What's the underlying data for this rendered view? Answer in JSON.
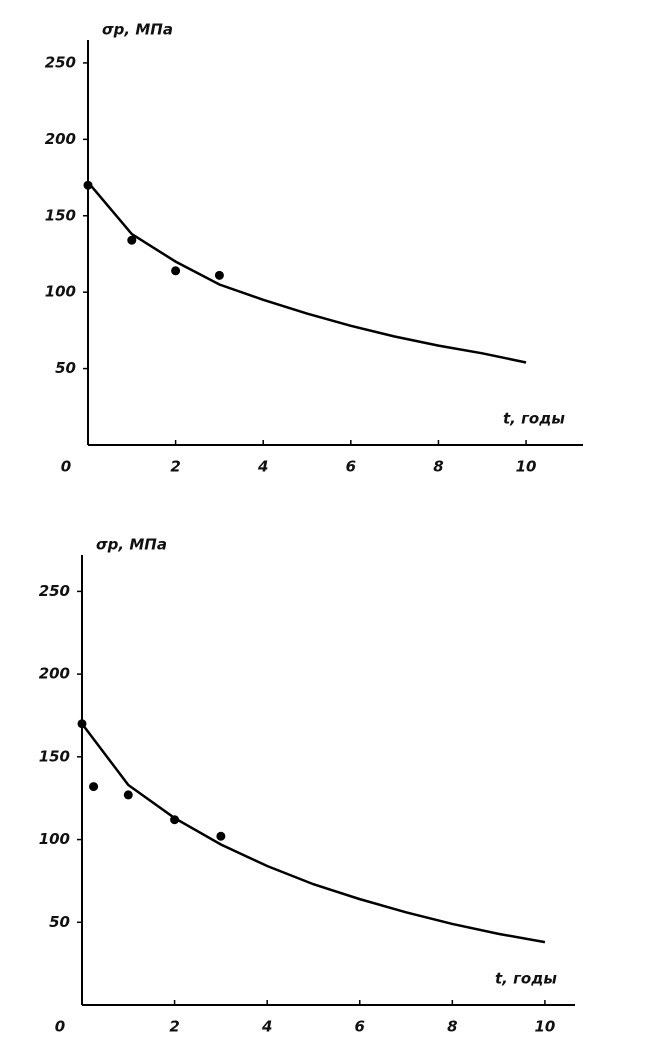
{
  "chart_data": [
    {
      "type": "line",
      "y_label": "σp, МПа",
      "x_label": "t, годы",
      "xlim": [
        0,
        11.3
      ],
      "ylim": [
        0,
        265
      ],
      "xticks": [
        0,
        2,
        4,
        6,
        8,
        10
      ],
      "yticks": [
        50,
        100,
        150,
        200,
        250
      ],
      "series": [
        {
          "type": "line",
          "color": "#000000",
          "x": [
            0,
            1,
            2,
            3,
            4,
            5,
            6,
            7,
            8,
            9,
            10
          ],
          "values": [
            172,
            138,
            120,
            105,
            95,
            86,
            78,
            71,
            65,
            60,
            54
          ]
        },
        {
          "type": "scatter",
          "color": "#000000",
          "x": [
            0,
            1,
            2,
            3
          ],
          "values": [
            170,
            134,
            114,
            111
          ]
        }
      ]
    },
    {
      "type": "line",
      "y_label": "σp, МПа",
      "x_label": "t, годы",
      "xlim": [
        0,
        10.65
      ],
      "ylim": [
        0,
        272
      ],
      "xticks": [
        0,
        2,
        4,
        6,
        8,
        10
      ],
      "yticks": [
        50,
        100,
        150,
        200,
        250
      ],
      "series": [
        {
          "type": "line",
          "color": "#000000",
          "x": [
            0,
            1,
            2,
            3,
            4,
            5,
            6,
            7,
            8,
            9,
            10
          ],
          "values": [
            170,
            133,
            113,
            97,
            84,
            73,
            64,
            56,
            49,
            43,
            38
          ]
        },
        {
          "type": "scatter",
          "color": "#000000",
          "x": [
            0,
            0.25,
            1,
            2,
            3
          ],
          "values": [
            170,
            132,
            127,
            112,
            102
          ]
        }
      ]
    }
  ]
}
